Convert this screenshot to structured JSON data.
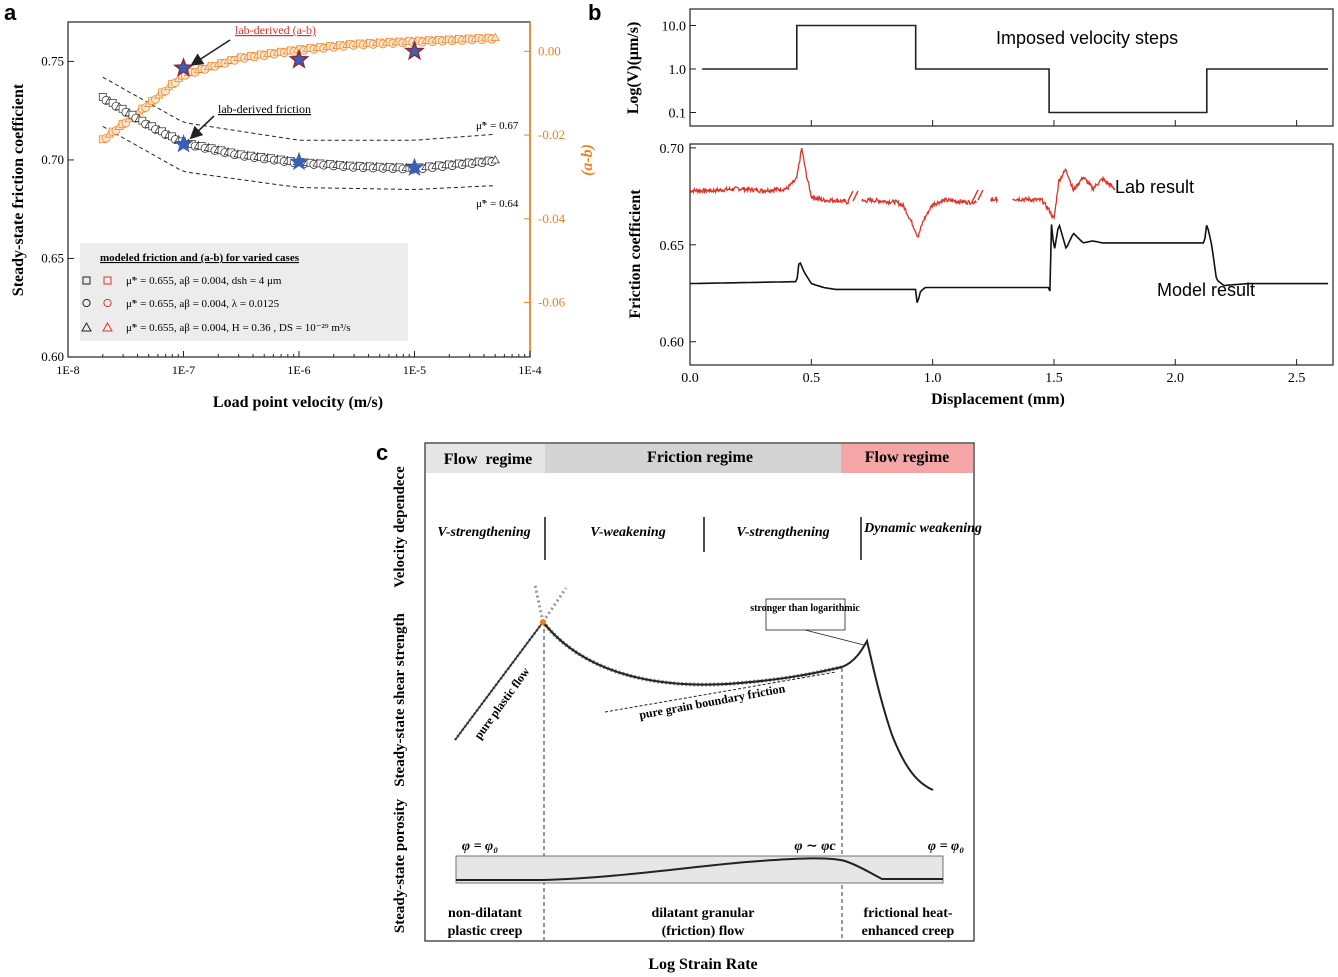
{
  "panels": {
    "a": {
      "letter": "a",
      "chart_data": {
        "type": "scatter",
        "xlabel": "Load point velocity (m/s)",
        "ylabel_left": "Steady-state friction coefficient",
        "ylabel_right": "(a-b)",
        "xscale": "log",
        "xlim": [
          1e-08,
          0.0001
        ],
        "ylim_left": [
          0.6,
          0.77
        ],
        "ylim_right": [
          -0.073,
          0.007
        ],
        "x_ticks": [
          "1E-8",
          "1E-7",
          "1E-6",
          "1E-5",
          "1E-4"
        ],
        "y_ticks_left": [
          "0.60",
          "0.65",
          "0.70",
          "0.75"
        ],
        "y_ticks_right": [
          "0.00",
          "-0.02",
          "-0.04",
          "-0.06"
        ],
        "colors": {
          "friction": "#222222",
          "ab": "#f07f1e",
          "stars": "#3a5fb8",
          "label_red": "#d9362b",
          "right_axis": "#f07f1e"
        },
        "friction_model": {
          "x": [
            2e-08,
            5e-08,
            1e-07,
            3e-07,
            1e-06,
            3e-06,
            1e-05,
            5e-05
          ],
          "y": [
            0.732,
            0.718,
            0.709,
            0.703,
            0.699,
            0.697,
            0.696,
            0.7
          ]
        },
        "friction_upper_bound": {
          "label": "μ̃* = 0.67",
          "x": [
            2e-08,
            1e-07,
            1e-06,
            1e-05,
            5e-05
          ],
          "y": [
            0.742,
            0.719,
            0.71,
            0.71,
            0.713
          ]
        },
        "friction_lower_bound": {
          "label": "μ̃* = 0.64",
          "x": [
            2e-08,
            1e-07,
            1e-06,
            1e-05,
            5e-05
          ],
          "y": [
            0.717,
            0.694,
            0.686,
            0.685,
            0.687
          ]
        },
        "ab_model": {
          "x": [
            2e-08,
            5e-08,
            1e-07,
            3e-07,
            1e-06,
            3e-06,
            1e-05,
            5e-05
          ],
          "y": [
            -0.021,
            -0.0125,
            -0.0055,
            -0.0015,
            0.0005,
            0.0018,
            0.0025,
            0.0033
          ]
        },
        "lab_ab": {
          "x": [
            1e-07,
            1e-06,
            1e-05
          ],
          "y": [
            -0.004,
            -0.002,
            0.0
          ]
        },
        "lab_friction": {
          "x": [
            1e-07,
            1e-06,
            1e-05
          ],
          "y": [
            0.708,
            0.699,
            0.696
          ]
        },
        "annotations": {
          "lab_ab": "lab-derived (a-b)",
          "lab_friction": "lab-derived friction"
        },
        "legend": {
          "title": "modeled friction and (a-b) for varied cases",
          "rows": [
            {
              "marker": "square",
              "text": "μ̃* = 0.655, aβ = 0.004, dsh = 4 μm"
            },
            {
              "marker": "circle",
              "text": "μ̃* = 0.655, aβ = 0.004, λ = 0.0125"
            },
            {
              "marker": "triangle",
              "text": "μ̃* = 0.655, aβ = 0.004, H = 0.36 , DS = 10⁻²⁹ m³/s"
            }
          ]
        }
      }
    },
    "b": {
      "letter": "b",
      "chart_data": {
        "type": "line",
        "xlabel": "Displacement (mm)",
        "x_ticks": [
          "0.0",
          "0.5",
          "1.0",
          "1.5",
          "2.0",
          "2.5"
        ],
        "xlim": [
          0,
          2.65
        ],
        "top": {
          "ylabel": "Log(V)(μm/s)",
          "yscale": "log",
          "y_ticks": [
            "10.0",
            "1.0",
            "0.1"
          ],
          "title": "Imposed velocity steps",
          "steps": {
            "x": [
              0.05,
              0.44,
              0.44,
              0.93,
              0.93,
              1.48,
              1.48,
              2.13,
              2.13,
              2.63
            ],
            "y": [
              1,
              1,
              10,
              10,
              1,
              1,
              0.1,
              0.1,
              1,
              1
            ]
          }
        },
        "bottom": {
          "ylabel": "Friction coefficient",
          "ylim": [
            0.588,
            0.702
          ],
          "y_ticks": [
            "0.70",
            "0.65",
            "0.60"
          ],
          "series": [
            {
              "name": "Lab result",
              "color": "#d9362b",
              "x": [
                0.0,
                0.1,
                0.2,
                0.3,
                0.4,
                0.44,
                0.46,
                0.48,
                0.5,
                0.55,
                0.6,
                0.65,
                0.75,
                0.85,
                0.88,
                0.92,
                0.94,
                0.96,
                1.0,
                1.05,
                1.15,
                1.3,
                1.45,
                1.48,
                1.5,
                1.52,
                1.55,
                1.58,
                1.62,
                1.66,
                1.7,
                1.75
              ],
              "y": [
                0.678,
                0.678,
                0.679,
                0.678,
                0.679,
                0.684,
                0.7,
                0.686,
                0.675,
                0.673,
                0.673,
                0.672,
                0.673,
                0.672,
                0.67,
                0.66,
                0.654,
                0.662,
                0.671,
                0.673,
                0.672,
                0.674,
                0.673,
                0.668,
                0.663,
                0.683,
                0.689,
                0.678,
                0.685,
                0.679,
                0.684,
                0.679
              ]
            },
            {
              "name": "Model result",
              "color": "#111111",
              "x": [
                0.0,
                0.44,
                0.45,
                0.47,
                0.5,
                0.55,
                0.6,
                0.93,
                0.935,
                0.94,
                0.95,
                0.97,
                1.0,
                1.48,
                1.485,
                1.49,
                1.5,
                1.52,
                1.55,
                1.58,
                1.62,
                1.66,
                1.7,
                2.12,
                2.13,
                2.15,
                2.17,
                2.2,
                2.3,
                2.63
              ],
              "y": [
                0.63,
                0.631,
                0.642,
                0.636,
                0.63,
                0.628,
                0.627,
                0.627,
                0.62,
                0.621,
                0.626,
                0.628,
                0.628,
                0.628,
                0.625,
                0.663,
                0.646,
                0.661,
                0.648,
                0.656,
                0.651,
                0.652,
                0.651,
                0.651,
                0.661,
                0.65,
                0.632,
                0.629,
                0.63,
                0.63
              ]
            }
          ]
        }
      }
    },
    "c": {
      "letter": "c",
      "chart_data": {
        "type": "schematic",
        "xlabel": "Log Strain Rate",
        "regimes": [
          "Flow  regime",
          "Friction regime",
          "Flow regime"
        ],
        "regime_colors": [
          "#e5e5e5",
          "#d3d3d3",
          "#f4a5a5"
        ],
        "row_labels": [
          "Velocity dependece",
          "Steady-state shear strength",
          "Steady-state porosity"
        ],
        "velocity_dependence": [
          "V-strengthening",
          "V-weakening",
          "V-strengthening",
          "Dynamic weakening"
        ],
        "annotations": {
          "peak_note": "stronger than logarithmic",
          "pure_plastic": "pure plastic flow",
          "pure_gb": "pure grain boundary friction"
        },
        "porosity_labels": [
          "φ = φ₀",
          "φ ∼ φc",
          "φ = φ₀"
        ],
        "bottom_labels": [
          "non-dilatant plastic creep",
          "dilatant granular (friction) flow",
          "frictional heat-enhanced creep"
        ]
      }
    }
  }
}
